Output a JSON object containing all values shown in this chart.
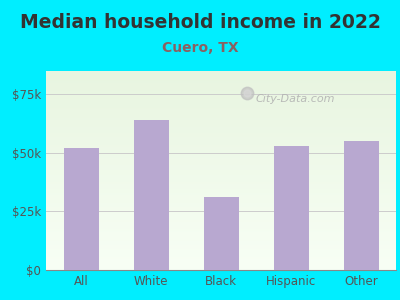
{
  "title": "Median household income in 2022",
  "subtitle": "Cuero, TX",
  "categories": [
    "All",
    "White",
    "Black",
    "Hispanic",
    "Other"
  ],
  "values": [
    52000,
    64000,
    31000,
    53000,
    55000
  ],
  "bar_color": "#b8a8d0",
  "background_outer": "#00eeff",
  "yticks": [
    0,
    25000,
    50000,
    75000
  ],
  "ytick_labels": [
    "$0",
    "$25k",
    "$50k",
    "$75k"
  ],
  "ylim": [
    0,
    85000
  ],
  "title_fontsize": 13.5,
  "subtitle_fontsize": 10,
  "watermark": "City-Data.com",
  "title_color": "#333333",
  "subtitle_color": "#8B6060",
  "tick_color": "#555555",
  "grid_color": "#cccccc",
  "plot_bg_top": "#eef8ee",
  "plot_bg_bottom": "#f8fff8"
}
